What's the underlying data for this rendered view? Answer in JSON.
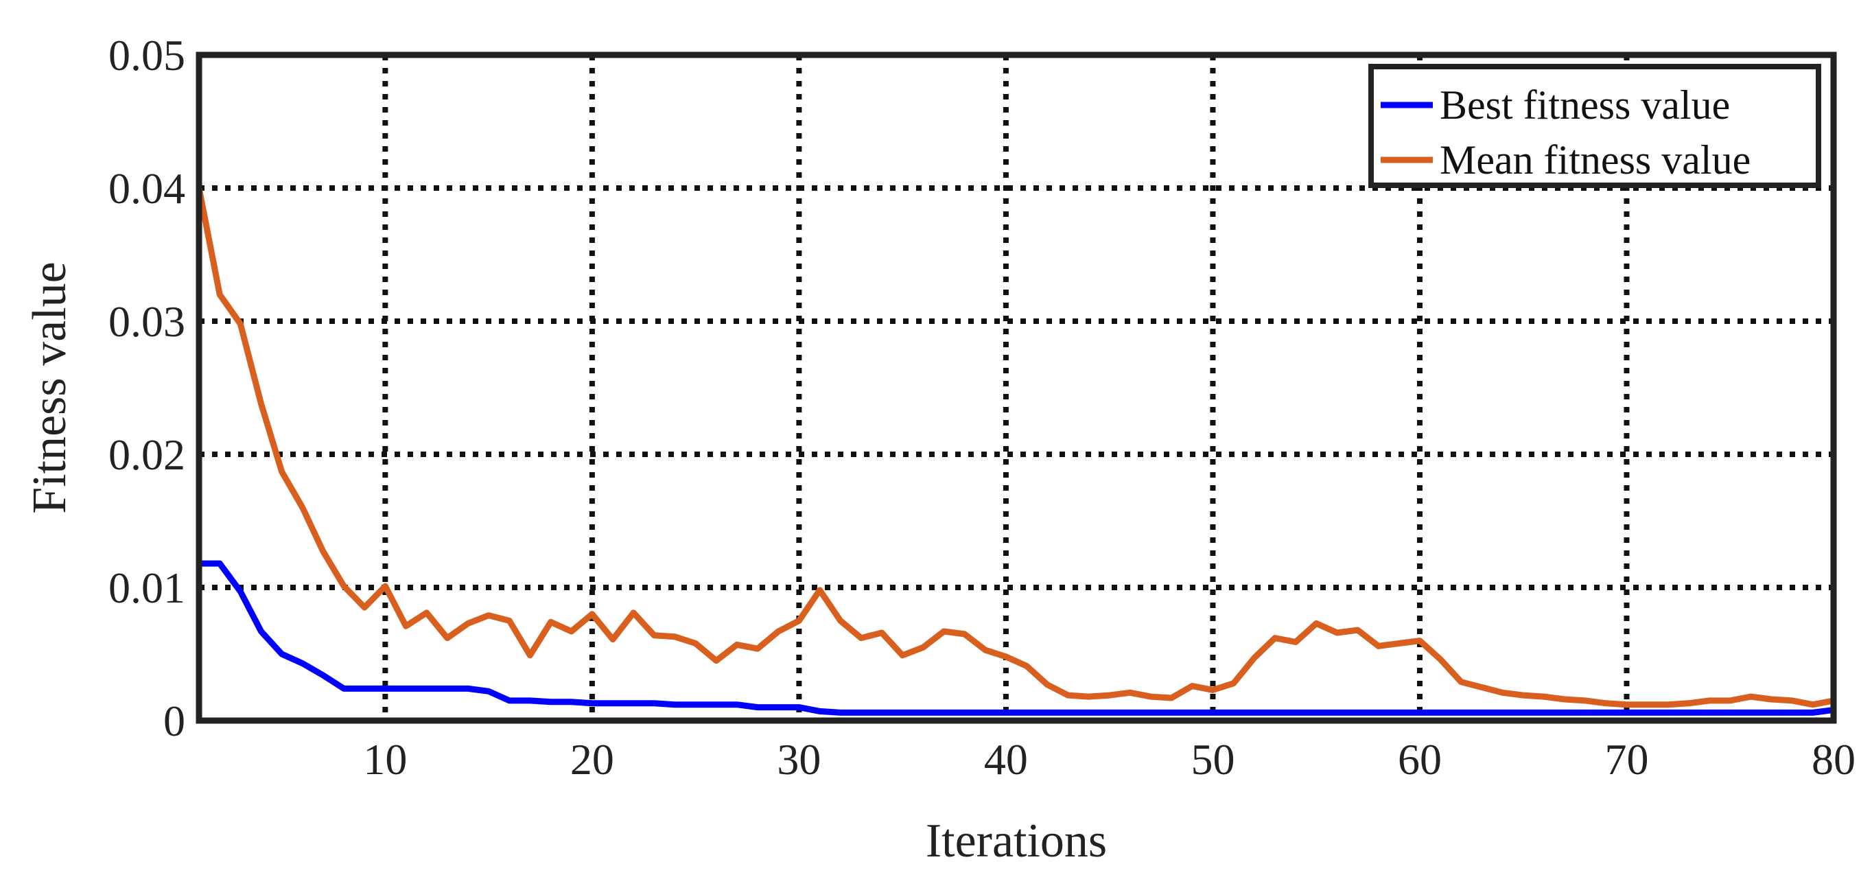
{
  "chart_data": {
    "type": "line",
    "xlabel": "Iterations",
    "ylabel": "Fitness value",
    "xlim": [
      1,
      80
    ],
    "ylim": [
      0,
      0.05
    ],
    "x_ticks": [
      10,
      20,
      30,
      40,
      50,
      60,
      70,
      80
    ],
    "x_tick_labels": [
      "10",
      "20",
      "30",
      "40",
      "50",
      "60",
      "70",
      "80"
    ],
    "y_ticks": [
      0,
      0.01,
      0.02,
      0.03,
      0.04,
      0.05
    ],
    "y_tick_labels": [
      "0",
      "0.01",
      "0.02",
      "0.03",
      "0.04",
      "0.05"
    ],
    "grid": true,
    "grid_style": "dotted",
    "legend_position": "top-right",
    "x": [
      1,
      2,
      3,
      4,
      5,
      6,
      7,
      8,
      9,
      10,
      11,
      12,
      13,
      14,
      15,
      16,
      17,
      18,
      19,
      20,
      21,
      22,
      23,
      24,
      25,
      26,
      27,
      28,
      29,
      30,
      31,
      32,
      33,
      34,
      35,
      36,
      37,
      38,
      39,
      40,
      41,
      42,
      43,
      44,
      45,
      46,
      47,
      48,
      49,
      50,
      51,
      52,
      53,
      54,
      55,
      56,
      57,
      58,
      59,
      60,
      61,
      62,
      63,
      64,
      65,
      66,
      67,
      68,
      69,
      70,
      71,
      72,
      73,
      74,
      75,
      76,
      77,
      78,
      79,
      80
    ],
    "series": [
      {
        "name": "Best fitness value",
        "color": "#0000ff",
        "values": [
          0.0118,
          0.0118,
          0.0097,
          0.0067,
          0.005,
          0.0043,
          0.0034,
          0.0024,
          0.0024,
          0.0024,
          0.0024,
          0.0024,
          0.0024,
          0.0024,
          0.0022,
          0.0015,
          0.0015,
          0.0014,
          0.0014,
          0.0013,
          0.0013,
          0.0013,
          0.0013,
          0.0012,
          0.0012,
          0.0012,
          0.0012,
          0.001,
          0.001,
          0.001,
          0.0007,
          0.0006,
          0.0006,
          0.0006,
          0.0006,
          0.0006,
          0.0006,
          0.0006,
          0.0006,
          0.0006,
          0.0006,
          0.0006,
          0.0006,
          0.0006,
          0.0006,
          0.0006,
          0.0006,
          0.0006,
          0.0006,
          0.0006,
          0.0006,
          0.0006,
          0.0006,
          0.0006,
          0.0006,
          0.0006,
          0.0006,
          0.0006,
          0.0006,
          0.0006,
          0.0006,
          0.0006,
          0.0006,
          0.0006,
          0.0006,
          0.0006,
          0.0006,
          0.0006,
          0.0006,
          0.0006,
          0.0006,
          0.0006,
          0.0006,
          0.0006,
          0.0006,
          0.0006,
          0.0006,
          0.0006,
          0.0006,
          0.0008
        ]
      },
      {
        "name": "Mean fitness value",
        "color": "#d95f1e",
        "values": [
          0.04,
          0.032,
          0.0298,
          0.0238,
          0.0187,
          0.016,
          0.0127,
          0.0101,
          0.0085,
          0.0101,
          0.0071,
          0.0081,
          0.0062,
          0.0073,
          0.0079,
          0.0075,
          0.0049,
          0.0074,
          0.0067,
          0.008,
          0.0061,
          0.0081,
          0.0064,
          0.0063,
          0.0058,
          0.0045,
          0.0057,
          0.0054,
          0.0067,
          0.0075,
          0.0098,
          0.0075,
          0.0062,
          0.0066,
          0.0049,
          0.0055,
          0.0067,
          0.0065,
          0.0053,
          0.0048,
          0.0041,
          0.0027,
          0.0019,
          0.0018,
          0.0019,
          0.0021,
          0.0018,
          0.0017,
          0.0026,
          0.0023,
          0.0028,
          0.0047,
          0.0062,
          0.0059,
          0.0073,
          0.0066,
          0.0068,
          0.0056,
          0.0058,
          0.006,
          0.0046,
          0.0029,
          0.0025,
          0.0021,
          0.0019,
          0.0018,
          0.0016,
          0.0015,
          0.0013,
          0.0012,
          0.0012,
          0.0012,
          0.0013,
          0.0015,
          0.0015,
          0.0018,
          0.0016,
          0.0015,
          0.0012,
          0.0015
        ]
      }
    ]
  }
}
